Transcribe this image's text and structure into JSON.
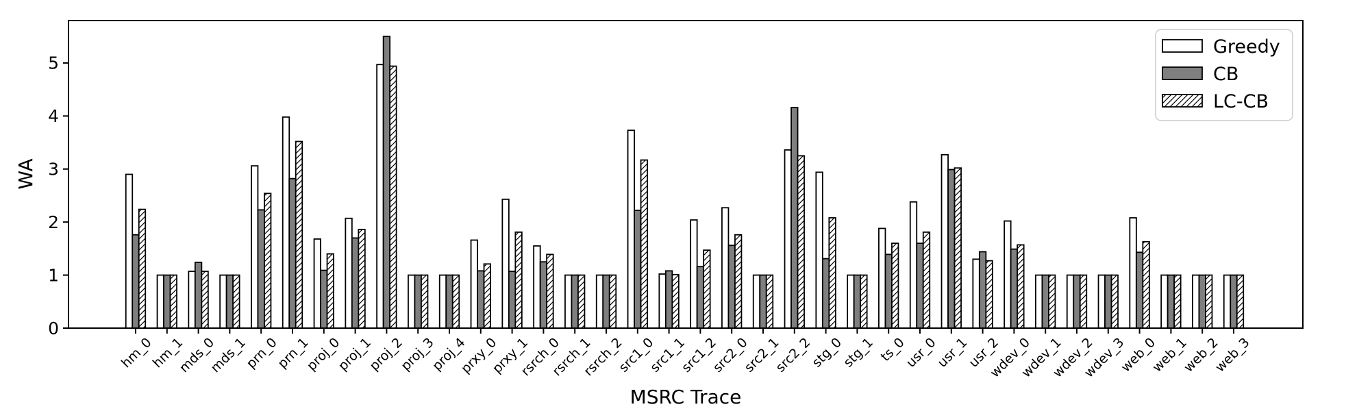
{
  "figure": {
    "background": "#ffffff"
  },
  "chart_data": {
    "type": "bar",
    "title": "",
    "xlabel": "MSRC Trace",
    "ylabel": "WA",
    "ylim": [
      0,
      5.8
    ],
    "yticks": [
      0,
      1,
      2,
      3,
      4,
      5
    ],
    "grid": false,
    "legend_position": "upper right",
    "xtick_rotation": 45,
    "edge_color": "#000000",
    "categories": [
      "hm_0",
      "hm_1",
      "mds_0",
      "mds_1",
      "prn_0",
      "prn_1",
      "proj_0",
      "proj_1",
      "proj_2",
      "proj_3",
      "proj_4",
      "prxy_0",
      "prxy_1",
      "rsrch_0",
      "rsrch_1",
      "rsrch_2",
      "src1_0",
      "src1_1",
      "src1_2",
      "src2_0",
      "src2_1",
      "src2_2",
      "stg_0",
      "stg_1",
      "ts_0",
      "usr_0",
      "usr_1",
      "usr_2",
      "wdev_0",
      "wdev_1",
      "wdev_2",
      "wdev_3",
      "web_0",
      "web_1",
      "web_2",
      "web_3"
    ],
    "series": [
      {
        "name": "Greedy",
        "fill": "#ffffff",
        "hatch": "none",
        "values": [
          2.9,
          1.0,
          1.07,
          1.0,
          3.06,
          3.98,
          1.68,
          2.07,
          4.97,
          1.0,
          1.0,
          1.66,
          2.43,
          1.55,
          1.0,
          1.0,
          3.73,
          1.02,
          2.04,
          2.27,
          1.0,
          3.36,
          2.94,
          1.0,
          1.88,
          2.38,
          3.27,
          1.3,
          2.02,
          1.0,
          1.0,
          1.0,
          2.08,
          1.0,
          1.0,
          1.0
        ]
      },
      {
        "name": "CB",
        "fill": "#7f7f7f",
        "hatch": "none",
        "values": [
          1.76,
          1.0,
          1.24,
          1.0,
          2.23,
          2.82,
          1.09,
          1.7,
          5.5,
          1.0,
          1.0,
          1.08,
          1.07,
          1.25,
          1.0,
          1.0,
          2.22,
          1.08,
          1.16,
          1.56,
          1.0,
          4.16,
          1.31,
          1.0,
          1.39,
          1.6,
          2.99,
          1.44,
          1.49,
          1.0,
          1.0,
          1.0,
          1.43,
          1.0,
          1.0,
          1.0
        ]
      },
      {
        "name": "LC-CB",
        "fill": "#ffffff",
        "hatch": "diagonal",
        "values": [
          2.24,
          1.0,
          1.07,
          1.0,
          2.54,
          3.52,
          1.4,
          1.86,
          4.94,
          1.0,
          1.0,
          1.21,
          1.81,
          1.39,
          1.0,
          1.0,
          3.17,
          1.01,
          1.47,
          1.76,
          1.0,
          3.25,
          2.08,
          1.0,
          1.6,
          1.81,
          3.02,
          1.27,
          1.57,
          1.0,
          1.0,
          1.0,
          1.63,
          1.0,
          1.0,
          1.0
        ]
      }
    ]
  }
}
